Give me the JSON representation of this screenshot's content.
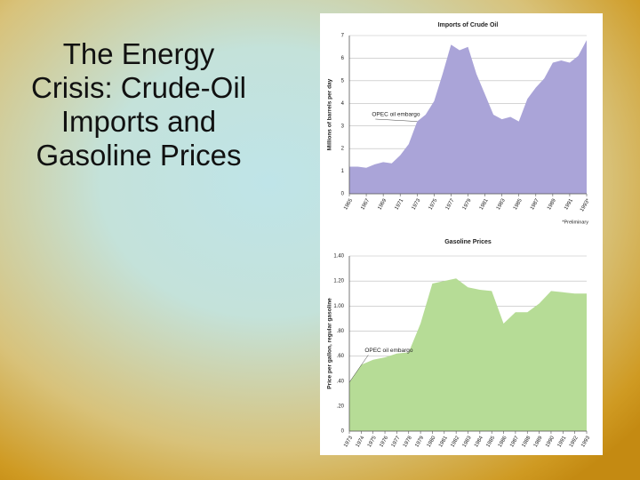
{
  "slide": {
    "title": "The Energy Crisis: Crude-Oil Imports and Gasoline Prices"
  },
  "chart_data": [
    {
      "type": "area",
      "title": "Imports of Crude Oil",
      "ylabel": "Millions of barrels per day",
      "x": [
        1965,
        1966,
        1967,
        1968,
        1969,
        1970,
        1971,
        1972,
        1973,
        1974,
        1975,
        1976,
        1977,
        1978,
        1979,
        1980,
        1981,
        1982,
        1983,
        1984,
        1985,
        1986,
        1987,
        1988,
        1989,
        1990,
        1991,
        1992,
        1993
      ],
      "values": [
        1.2,
        1.2,
        1.15,
        1.3,
        1.4,
        1.35,
        1.7,
        2.2,
        3.2,
        3.5,
        4.1,
        5.3,
        6.6,
        6.35,
        6.5,
        5.3,
        4.4,
        3.5,
        3.3,
        3.4,
        3.2,
        4.2,
        4.7,
        5.1,
        5.8,
        5.9,
        5.8,
        6.1,
        6.8
      ],
      "color": "#aaa4d8",
      "xlim": [
        1965,
        1993
      ],
      "xticks": [
        1965,
        1967,
        1969,
        1971,
        1973,
        1975,
        1977,
        1979,
        1981,
        1983,
        1985,
        1987,
        1989,
        1991,
        {
          "value": 1993,
          "label": "1993*"
        }
      ],
      "ylim": [
        0,
        7
      ],
      "yticks": [
        0,
        1,
        2,
        3,
        4,
        5,
        6,
        7
      ],
      "grid": true,
      "annotation": "OPEC oil embargo",
      "footnote": "*Preliminary"
    },
    {
      "type": "area",
      "title": "Gasoline Prices",
      "ylabel": "Price per gallon, regular gasoline",
      "x": [
        1973,
        1974,
        1975,
        1976,
        1977,
        1978,
        1979,
        1980,
        1981,
        1982,
        1983,
        1984,
        1985,
        1986,
        1987,
        1988,
        1989,
        1990,
        1991,
        1992,
        1993
      ],
      "values": [
        0.39,
        0.53,
        0.57,
        0.59,
        0.62,
        0.63,
        0.86,
        1.18,
        1.2,
        1.22,
        1.15,
        1.13,
        1.12,
        0.86,
        0.95,
        0.95,
        1.02,
        1.12,
        1.11,
        1.1,
        1.1
      ],
      "color": "#b6dc96",
      "xlim": [
        1973,
        1993
      ],
      "xticks": [
        1973,
        1974,
        1975,
        1976,
        1977,
        1978,
        1979,
        1980,
        1981,
        1982,
        1983,
        1984,
        1985,
        1986,
        1987,
        1988,
        1989,
        1990,
        1991,
        1992,
        1993
      ],
      "ylim": [
        0,
        1.4
      ],
      "yticks": [
        0,
        {
          "value": 0.2,
          "label": ".20"
        },
        {
          "value": 0.4,
          "label": ".40"
        },
        {
          "value": 0.6,
          "label": ".60"
        },
        {
          "value": 0.8,
          "label": ".80"
        },
        {
          "value": 1.0,
          "label": "1.00"
        },
        {
          "value": 1.2,
          "label": "1.20"
        },
        {
          "value": 1.4,
          "label": "1.40"
        }
      ],
      "grid": true,
      "annotation": "OPEC oil embargo"
    }
  ]
}
